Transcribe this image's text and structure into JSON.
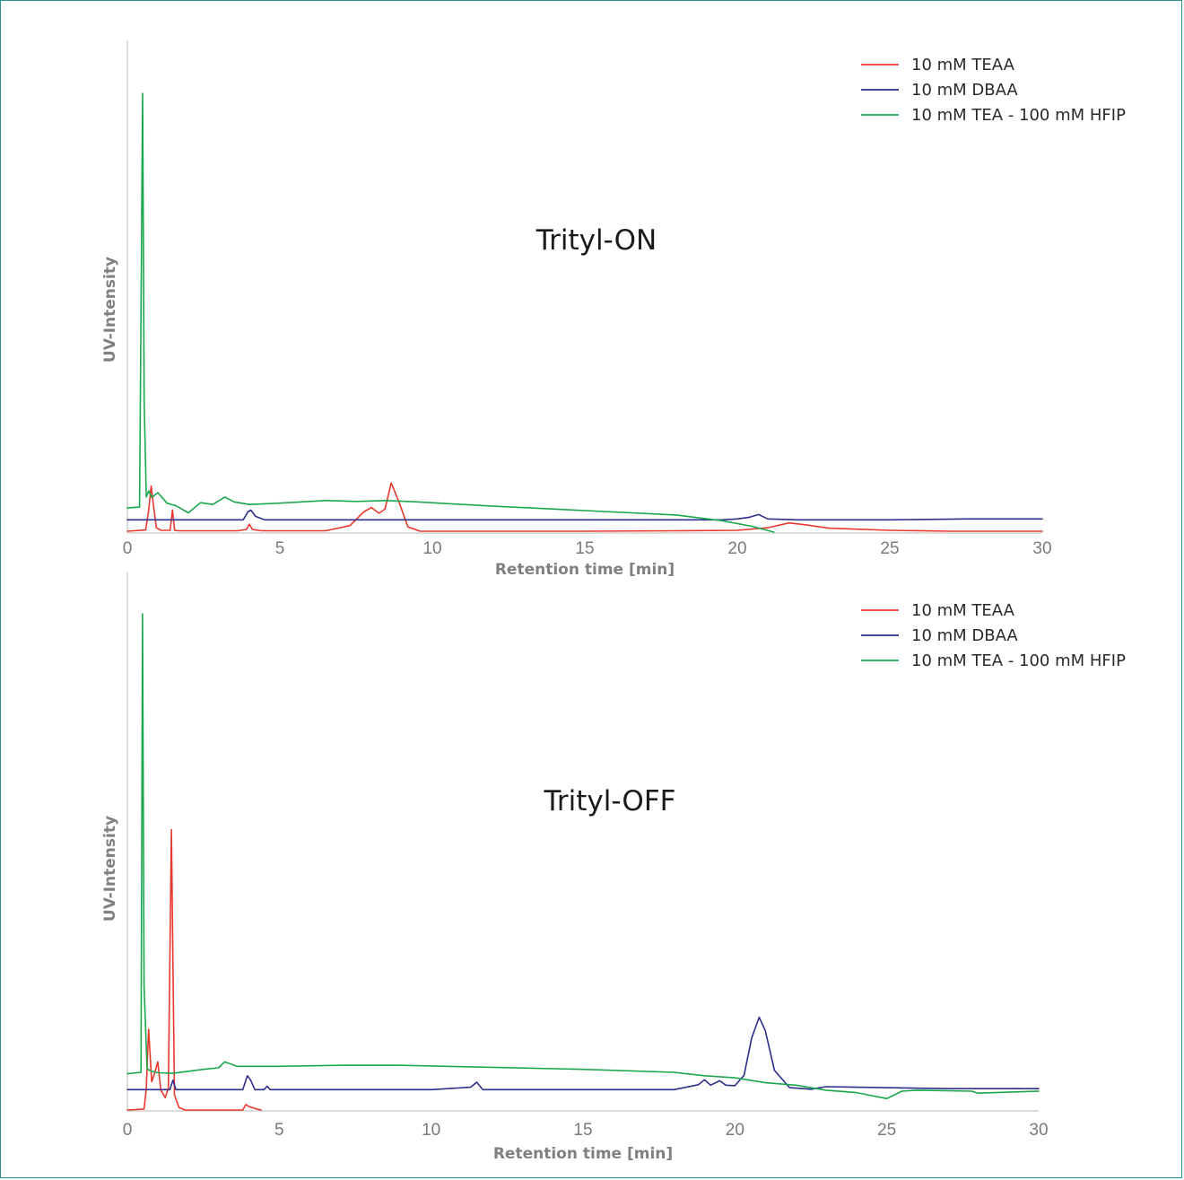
{
  "chart_data": [
    {
      "type": "line",
      "title": "Trityl-ON",
      "xlabel": "Retention time [min]",
      "ylabel": "UV-Intensity",
      "xlim": [
        0,
        30
      ],
      "ylim": [
        0,
        100
      ],
      "xticks": [
        0,
        5,
        10,
        15,
        20,
        25,
        30
      ],
      "grid": false,
      "legend_position": "top-right",
      "series": [
        {
          "name": "10 mM TEAA",
          "color": "#e8382e",
          "x": [
            0.0,
            0.6,
            0.7,
            0.78,
            0.86,
            0.95,
            1.1,
            1.4,
            1.48,
            1.55,
            1.7,
            3.6,
            3.9,
            4.0,
            4.1,
            4.4,
            6.5,
            7.3,
            7.75,
            8.0,
            8.25,
            8.45,
            8.65,
            8.9,
            9.2,
            9.6,
            12,
            15,
            18,
            20,
            21,
            21.7,
            22.2,
            23,
            25,
            27,
            30
          ],
          "y": [
            0.2,
            0.5,
            5.0,
            10.5,
            6.0,
            1.0,
            0.4,
            0.4,
            5.0,
            0.4,
            0.3,
            0.3,
            0.6,
            1.8,
            0.6,
            0.3,
            0.3,
            1.5,
            4.6,
            5.6,
            4.3,
            5.3,
            11.2,
            7.0,
            1.2,
            0.2,
            0.2,
            0.2,
            0.3,
            0.4,
            1.0,
            2.1,
            1.7,
            0.9,
            0.4,
            0.2,
            0.2
          ]
        },
        {
          "name": "10 mM DBAA",
          "color": "#2e2e8c",
          "x": [
            0.0,
            3.0,
            3.8,
            3.95,
            4.05,
            4.2,
            4.5,
            10,
            15,
            18.5,
            19.5,
            20.0,
            20.4,
            20.7,
            21.0,
            22.0,
            25,
            27.5,
            30
          ],
          "y": [
            2.8,
            2.8,
            2.8,
            4.6,
            5.0,
            3.6,
            2.8,
            2.8,
            2.8,
            2.8,
            2.8,
            3.0,
            3.4,
            4.0,
            3.0,
            2.8,
            2.8,
            3.0,
            3.0
          ]
        },
        {
          "name": "10 mM TEA - 100 mM HFIP",
          "color": "#1aa84e",
          "x": [
            0.0,
            0.4,
            0.5,
            0.55,
            0.62,
            0.7,
            0.8,
            1.0,
            1.3,
            1.6,
            2.0,
            2.4,
            2.8,
            3.2,
            3.5,
            4.0,
            5.0,
            6.5,
            7.5,
            8.5,
            9.5,
            12,
            15,
            18,
            19.5,
            20.5,
            21.2
          ],
          "y": [
            5.5,
            5.7,
            100,
            30.0,
            8.0,
            9.4,
            7.9,
            9.0,
            6.6,
            6.0,
            4.4,
            6.7,
            6.3,
            8.0,
            6.9,
            6.3,
            6.6,
            7.2,
            7.0,
            7.2,
            6.9,
            5.9,
            4.9,
            3.9,
            2.6,
            1.3,
            0.0
          ]
        }
      ]
    },
    {
      "type": "line",
      "title": "Trityl-OFF",
      "xlabel": "Retention time [min]",
      "ylabel": "UV-Intensity",
      "xlim": [
        0,
        30
      ],
      "ylim": [
        0,
        100
      ],
      "xticks": [
        0,
        5,
        10,
        15,
        20,
        25,
        30
      ],
      "grid": false,
      "legend_position": "top-right",
      "series": [
        {
          "name": "10 mM TEAA",
          "color": "#e8382e",
          "x": [
            0.0,
            0.55,
            0.62,
            0.7,
            0.8,
            0.9,
            1.0,
            1.1,
            1.25,
            1.35,
            1.45,
            1.55,
            1.7,
            1.9,
            2.3,
            3.8,
            3.9,
            4.0,
            4.2,
            4.4
          ],
          "y": [
            0.0,
            0.2,
            4.0,
            16.3,
            5.7,
            7.5,
            9.7,
            4.0,
            2.5,
            4.5,
            56.5,
            3.0,
            0.5,
            0.0,
            0.0,
            0.0,
            1.1,
            0.7,
            0.3,
            0.0
          ]
        },
        {
          "name": "10 mM DBAA",
          "color": "#2e2e8c",
          "x": [
            0.0,
            0.5,
            1.4,
            1.5,
            1.6,
            3.8,
            3.95,
            4.05,
            4.2,
            4.5,
            4.6,
            4.7,
            10,
            11.3,
            11.5,
            11.7,
            18,
            18.8,
            19.0,
            19.2,
            19.5,
            19.7,
            20.0,
            20.3,
            20.55,
            20.8,
            21.0,
            21.3,
            21.8,
            22.5,
            23,
            24,
            27,
            30
          ],
          "y": [
            4.1,
            4.1,
            4.1,
            6.0,
            4.1,
            4.1,
            6.9,
            6.1,
            4.1,
            4.1,
            4.8,
            4.1,
            4.1,
            4.6,
            5.6,
            4.1,
            4.1,
            5.1,
            6.1,
            5.0,
            5.9,
            5.0,
            4.9,
            7.0,
            14.5,
            18.7,
            16.0,
            8.0,
            4.5,
            4.2,
            4.7,
            4.6,
            4.3,
            4.3
          ]
        },
        {
          "name": "10 mM TEA - 100 mM HFIP",
          "color": "#1aa84e",
          "x": [
            0.0,
            0.45,
            0.5,
            0.55,
            0.65,
            0.8,
            1.0,
            1.5,
            2.5,
            3.0,
            3.2,
            3.4,
            3.6,
            5,
            7,
            9,
            12,
            15,
            18,
            19,
            20,
            21,
            22,
            23,
            24,
            25.0,
            25.5,
            26,
            27.8,
            28,
            30
          ],
          "y": [
            7.3,
            7.6,
            100,
            25.0,
            8.3,
            7.8,
            7.5,
            7.4,
            8.2,
            8.5,
            9.7,
            9.3,
            8.8,
            8.8,
            9.0,
            9.0,
            8.6,
            8.2,
            7.6,
            6.9,
            6.5,
            5.5,
            5.0,
            4.0,
            3.5,
            2.3,
            3.8,
            4.0,
            3.8,
            3.4,
            3.8
          ]
        }
      ]
    }
  ]
}
